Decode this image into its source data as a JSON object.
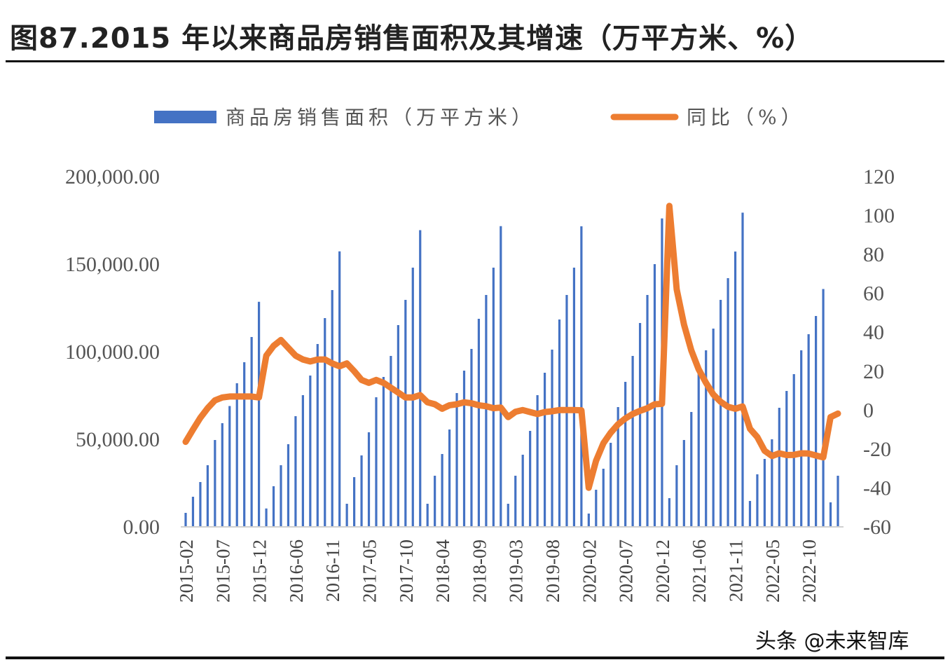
{
  "title": "图87.2015 年以来商品房销售面积及其增速（万平方米、%）",
  "watermark": "头条 @未来智库",
  "chart_data": {
    "type": "bar+line",
    "title": "",
    "legend": {
      "placement": "top",
      "entries": [
        "商品房销售面积（万平方米）",
        "同比（%）"
      ]
    },
    "colors": {
      "bars": "#4472C4",
      "line": "#ED7D31"
    },
    "grid": false,
    "y_left": {
      "range": [
        0,
        200000
      ],
      "ticks": [
        "0.00",
        "50,000.00",
        "100,000.00",
        "150,000.00",
        "200,000.00"
      ]
    },
    "y_right": {
      "range": [
        -60,
        120
      ],
      "ticks": [
        "-60",
        "-40",
        "-20",
        "0",
        "20",
        "40",
        "60",
        "80",
        "100",
        "120"
      ]
    },
    "x_tick_labels": [
      "2015-02",
      "2015-07",
      "2015-12",
      "2016-06",
      "2016-11",
      "2017-05",
      "2017-10",
      "2018-04",
      "2018-09",
      "2019-03",
      "2019-08",
      "2020-02",
      "2020-07",
      "2020-12",
      "2021-06",
      "2021-11",
      "2022-05",
      "2022-10"
    ],
    "categories": [
      "2015-02",
      "2015-03",
      "2015-04",
      "2015-05",
      "2015-06",
      "2015-07",
      "2015-08",
      "2015-09",
      "2015-10",
      "2015-11",
      "2015-12",
      "2016-02",
      "2016-03",
      "2016-04",
      "2016-05",
      "2016-06",
      "2016-07",
      "2016-08",
      "2016-09",
      "2016-10",
      "2016-11",
      "2016-12",
      "2017-02",
      "2017-03",
      "2017-04",
      "2017-05",
      "2017-06",
      "2017-07",
      "2017-08",
      "2017-09",
      "2017-10",
      "2017-11",
      "2017-12",
      "2018-02",
      "2018-03",
      "2018-04",
      "2018-05",
      "2018-06",
      "2018-07",
      "2018-08",
      "2018-09",
      "2018-10",
      "2018-11",
      "2018-12",
      "2019-02",
      "2019-03",
      "2019-04",
      "2019-05",
      "2019-06",
      "2019-07",
      "2019-08",
      "2019-09",
      "2019-10",
      "2019-11",
      "2019-12",
      "2020-02",
      "2020-03",
      "2020-04",
      "2020-05",
      "2020-06",
      "2020-07",
      "2020-08",
      "2020-09",
      "2020-10",
      "2020-11",
      "2020-12",
      "2021-02",
      "2021-03",
      "2021-04",
      "2021-05",
      "2021-06",
      "2021-07",
      "2021-08",
      "2021-09",
      "2021-10",
      "2021-11",
      "2021-12",
      "2022-02",
      "2022-03",
      "2022-04",
      "2022-05",
      "2022-06",
      "2022-07",
      "2022-08",
      "2022-09",
      "2022-10",
      "2022-11",
      "2022-12",
      "2023-02",
      "2023-03"
    ],
    "series": [
      {
        "name": "商品房销售面积（万平方米）",
        "type": "bar",
        "axis": "left",
        "values": [
          8000,
          17200,
          25600,
          35200,
          49600,
          59200,
          69000,
          82000,
          94000,
          108400,
          128500,
          10500,
          23200,
          35200,
          47200,
          63200,
          75200,
          86400,
          104400,
          119200,
          135200,
          157300,
          13200,
          28400,
          40800,
          54000,
          74000,
          85600,
          97600,
          115200,
          129600,
          148000,
          169400,
          13200,
          29200,
          41600,
          55600,
          76400,
          89200,
          101600,
          118800,
          132400,
          148000,
          171700,
          13200,
          29200,
          41200,
          54800,
          75200,
          88000,
          101200,
          118400,
          132400,
          148000,
          171600,
          7600,
          21200,
          33200,
          48000,
          68400,
          82800,
          97600,
          116400,
          132400,
          150000,
          176100,
          16400,
          35200,
          49600,
          65600,
          88000,
          100800,
          113200,
          129600,
          142000,
          157200,
          179400,
          14800,
          30000,
          38800,
          50000,
          68000,
          77600,
          87200,
          100800,
          110000,
          120400,
          135800,
          14000,
          29200
        ]
      },
      {
        "name": "同比（%）",
        "type": "line",
        "axis": "right",
        "values": [
          -16.3,
          -10,
          -4,
          1,
          5,
          6.5,
          7,
          7,
          7,
          7,
          6.5,
          28,
          33,
          36,
          32,
          28,
          26,
          25,
          26,
          26,
          24,
          22.5,
          24,
          20,
          15.5,
          14,
          15.5,
          14,
          11.5,
          9,
          6.5,
          6.5,
          7.7,
          4,
          3,
          0.7,
          2.5,
          3,
          4,
          3.5,
          2.5,
          2,
          1,
          1.3,
          -3.6,
          -0.9,
          0,
          -1,
          -2,
          -1,
          -0.6,
          0,
          0,
          0,
          -0.1,
          -39.9,
          -26,
          -17,
          -11.6,
          -7.3,
          -4.3,
          -2,
          -0.4,
          1,
          3,
          3.2,
          104.9,
          62,
          44,
          30.6,
          21,
          14,
          8,
          4.3,
          1.7,
          0.7,
          1.9,
          -9.6,
          -13.8,
          -20.9,
          -23.6,
          -22.2,
          -23.1,
          -23,
          -22.2,
          -22.3,
          -23.3,
          -24.3,
          -3.6,
          -1.8
        ]
      }
    ]
  }
}
